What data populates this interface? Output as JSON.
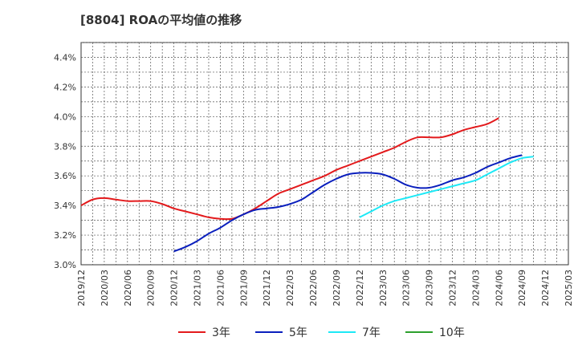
{
  "chart_data": {
    "type": "line",
    "title": "[8804]  ROAの平均値の推移",
    "xlabel": "",
    "ylabel": "",
    "ylim": [
      3.0,
      4.5
    ],
    "yticks": [
      "3.0%",
      "3.2%",
      "3.4%",
      "3.6%",
      "3.8%",
      "4.0%",
      "4.2%",
      "4.4%"
    ],
    "ytick_values": [
      3.0,
      3.2,
      3.4,
      3.6,
      3.8,
      4.0,
      4.2,
      4.4
    ],
    "xticks": [
      "2019/12",
      "2020/03",
      "2020/06",
      "2020/09",
      "2020/12",
      "2021/03",
      "2021/06",
      "2021/09",
      "2021/12",
      "2022/03",
      "2022/06",
      "2022/09",
      "2022/12",
      "2023/03",
      "2023/06",
      "2023/09",
      "2023/12",
      "2024/03",
      "2024/06",
      "2024/09",
      "2024/12",
      "2025/03"
    ],
    "grid": true,
    "legend_position": "bottom",
    "series": [
      {
        "name": "3年",
        "color": "#e31a1c",
        "start": "2019/12",
        "values": [
          3.4,
          3.44,
          3.45,
          3.44,
          3.43,
          3.43,
          3.43,
          3.41,
          3.38,
          3.36,
          3.34,
          3.32,
          3.31,
          3.31,
          3.34,
          3.38,
          3.43,
          3.48,
          3.51,
          3.54,
          3.57,
          3.6,
          3.64,
          3.67,
          3.7,
          3.73,
          3.76,
          3.79,
          3.83,
          3.86,
          3.86,
          3.86,
          3.88,
          3.91,
          3.93,
          3.95,
          3.99
        ]
      },
      {
        "name": "5年",
        "color": "#0a1fbd",
        "start": "2020/12",
        "values": [
          3.09,
          3.12,
          3.16,
          3.21,
          3.25,
          3.3,
          3.34,
          3.37,
          3.38,
          3.39,
          3.41,
          3.44,
          3.49,
          3.54,
          3.58,
          3.61,
          3.62,
          3.62,
          3.61,
          3.58,
          3.54,
          3.52,
          3.52,
          3.54,
          3.57,
          3.59,
          3.62,
          3.66,
          3.69,
          3.72,
          3.74
        ]
      },
      {
        "name": "7年",
        "color": "#1de9f6",
        "start": "2022/12",
        "values": [
          3.32,
          3.36,
          3.4,
          3.43,
          3.45,
          3.47,
          3.49,
          3.51,
          3.53,
          3.55,
          3.57,
          3.61,
          3.65,
          3.69,
          3.72,
          3.73
        ]
      },
      {
        "name": "10年",
        "color": "#2ca02c",
        "start": "2024/12",
        "values": []
      }
    ]
  }
}
